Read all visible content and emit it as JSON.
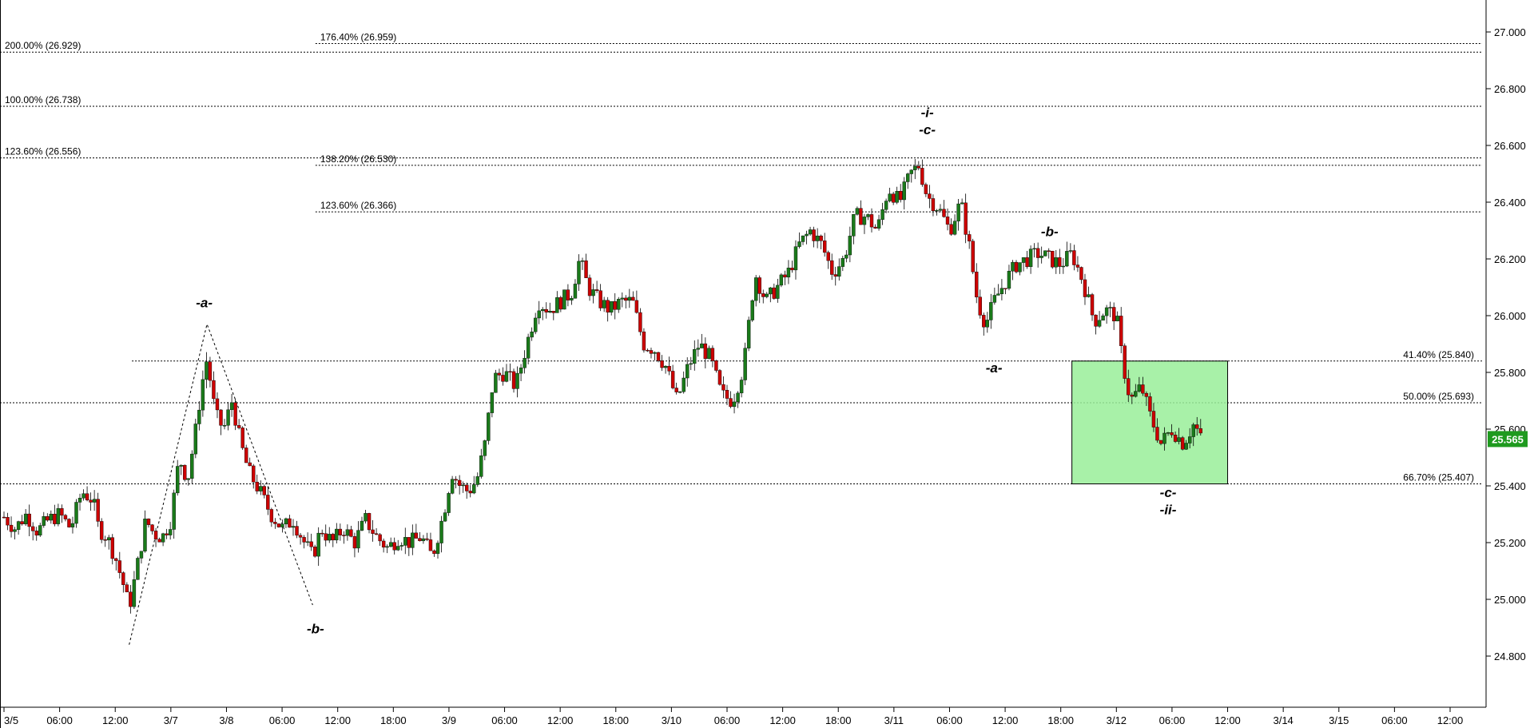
{
  "chart_data": {
    "type": "candlestick",
    "y_range": [
      24.7,
      27.15
    ],
    "x_range": [
      0,
      26.6
    ],
    "y_ticks": [
      "24.800",
      "25.000",
      "25.200",
      "25.400",
      "25.600",
      "25.800",
      "26.000",
      "26.200",
      "26.400",
      "26.600",
      "26.800",
      "27.000"
    ],
    "x_ticks": [
      {
        "label": "3/5",
        "x": 0
      },
      {
        "label": "06:00",
        "x": 1
      },
      {
        "label": "12:00",
        "x": 2
      },
      {
        "label": "3/7",
        "x": 3
      },
      {
        "label": "3/8",
        "x": 4
      },
      {
        "label": "06:00",
        "x": 5
      },
      {
        "label": "12:00",
        "x": 6
      },
      {
        "label": "18:00",
        "x": 7
      },
      {
        "label": "3/9",
        "x": 8
      },
      {
        "label": "06:00",
        "x": 9
      },
      {
        "label": "12:00",
        "x": 10
      },
      {
        "label": "18:00",
        "x": 11
      },
      {
        "label": "3/10",
        "x": 12
      },
      {
        "label": "06:00",
        "x": 13
      },
      {
        "label": "12:00",
        "x": 14
      },
      {
        "label": "18:00",
        "x": 15
      },
      {
        "label": "3/11",
        "x": 16
      },
      {
        "label": "06:00",
        "x": 17
      },
      {
        "label": "12:00",
        "x": 18
      },
      {
        "label": "18:00",
        "x": 19
      },
      {
        "label": "3/12",
        "x": 20
      },
      {
        "label": "06:00",
        "x": 21
      },
      {
        "label": "12:00",
        "x": 22
      },
      {
        "label": "3/14",
        "x": 23
      },
      {
        "label": "3/15",
        "x": 24
      },
      {
        "label": "06:00",
        "x": 25
      },
      {
        "label": "12:00",
        "x": 26
      }
    ],
    "last_price": "25.565",
    "colors": {
      "up": "#1a7a1a",
      "down": "#cc0000",
      "wick": "#000000",
      "badge": "#1f9a1f",
      "zone": "#99ee99",
      "zone_border": "#000000",
      "grid": "#000000"
    },
    "fib_levels": [
      {
        "label": "200.00% (26.929)",
        "value": 26.929,
        "x_start": 0,
        "label_side": "left"
      },
      {
        "label": "100.00% (26.738)",
        "value": 26.738,
        "x_start": 0,
        "label_side": "left"
      },
      {
        "label": "123.60% (26.556)",
        "value": 26.556,
        "x_start": 0,
        "label_side": "left"
      },
      {
        "label": "176.40% (26.959)",
        "value": 26.959,
        "x_start": 5.6,
        "label_side": "left"
      },
      {
        "label": "138.20% (26.530)",
        "value": 26.53,
        "x_start": 5.6,
        "label_side": "left"
      },
      {
        "label": "123.60% (26.366)",
        "value": 26.366,
        "x_start": 5.6,
        "label_side": "left"
      },
      {
        "label": "41.40% (25.840)",
        "value": 25.84,
        "x_start": 2.3,
        "label_side": "right"
      },
      {
        "label": "50.00% (25.693)",
        "value": 25.693,
        "x_start": 0,
        "label_side": "right"
      },
      {
        "label": "66.70% (25.407)",
        "value": 25.407,
        "x_start": 0,
        "label_side": "right"
      }
    ],
    "zone": {
      "x0": 19.2,
      "x1": 22,
      "y0": 25.407,
      "y1": 25.84
    },
    "projection_lines": [
      {
        "x": [
          2.25,
          3.65,
          5.55
        ],
        "y": [
          24.84,
          25.97,
          24.98
        ]
      }
    ],
    "wave_labels": [
      {
        "text": "-a-",
        "x": 3.6,
        "y": 26.03
      },
      {
        "text": "-b-",
        "x": 5.6,
        "y": 24.88
      },
      {
        "text": "-i-",
        "x": 16.6,
        "y": 26.7
      },
      {
        "text": "-c-",
        "x": 16.6,
        "y": 26.64
      },
      {
        "text": "-a-",
        "x": 17.8,
        "y": 25.8
      },
      {
        "text": "-b-",
        "x": 18.8,
        "y": 26.28
      },
      {
        "text": "-c-",
        "x": 20.93,
        "y": 25.36
      },
      {
        "text": "-ii-",
        "x": 20.93,
        "y": 25.3
      }
    ],
    "price_path": [
      [
        0.0,
        25.29
      ],
      [
        0.2,
        25.25
      ],
      [
        0.4,
        25.3
      ],
      [
        0.6,
        25.24
      ],
      [
        0.8,
        25.28
      ],
      [
        1.0,
        25.3
      ],
      [
        1.2,
        25.25
      ],
      [
        1.4,
        25.38
      ],
      [
        1.6,
        25.35
      ],
      [
        1.7,
        25.25
      ],
      [
        1.85,
        25.22
      ],
      [
        2.0,
        25.15
      ],
      [
        2.15,
        25.05
      ],
      [
        2.25,
        24.97
      ],
      [
        2.4,
        25.12
      ],
      [
        2.55,
        25.28
      ],
      [
        2.7,
        25.23
      ],
      [
        2.85,
        25.22
      ],
      [
        3.0,
        25.28
      ],
      [
        3.15,
        25.5
      ],
      [
        3.3,
        25.42
      ],
      [
        3.45,
        25.6
      ],
      [
        3.55,
        25.75
      ],
      [
        3.65,
        25.85
      ],
      [
        3.8,
        25.65
      ],
      [
        3.95,
        25.6
      ],
      [
        4.1,
        25.7
      ],
      [
        4.25,
        25.55
      ],
      [
        4.4,
        25.45
      ],
      [
        4.6,
        25.38
      ],
      [
        4.8,
        25.3
      ],
      [
        5.0,
        25.25
      ],
      [
        5.2,
        25.28
      ],
      [
        5.4,
        25.2
      ],
      [
        5.55,
        25.15
      ],
      [
        5.7,
        25.25
      ],
      [
        5.9,
        25.2
      ],
      [
        6.1,
        25.25
      ],
      [
        6.3,
        25.2
      ],
      [
        6.5,
        25.28
      ],
      [
        6.7,
        25.22
      ],
      [
        6.9,
        25.18
      ],
      [
        7.1,
        25.22
      ],
      [
        7.3,
        25.2
      ],
      [
        7.5,
        25.22
      ],
      [
        7.7,
        25.15
      ],
      [
        7.9,
        25.3
      ],
      [
        8.05,
        25.45
      ],
      [
        8.2,
        25.4
      ],
      [
        8.35,
        25.38
      ],
      [
        8.5,
        25.42
      ],
      [
        8.65,
        25.55
      ],
      [
        8.8,
        25.78
      ],
      [
        9.0,
        25.8
      ],
      [
        9.2,
        25.75
      ],
      [
        9.4,
        25.9
      ],
      [
        9.6,
        26.05
      ],
      [
        9.8,
        26.02
      ],
      [
        10.0,
        26.05
      ],
      [
        10.2,
        26.08
      ],
      [
        10.35,
        26.2
      ],
      [
        10.5,
        26.1
      ],
      [
        10.7,
        26.05
      ],
      [
        10.9,
        26.02
      ],
      [
        11.1,
        26.05
      ],
      [
        11.3,
        26.05
      ],
      [
        11.5,
        25.9
      ],
      [
        11.7,
        25.88
      ],
      [
        11.9,
        25.82
      ],
      [
        12.1,
        25.7
      ],
      [
        12.3,
        25.82
      ],
      [
        12.5,
        25.9
      ],
      [
        12.7,
        25.85
      ],
      [
        12.9,
        25.72
      ],
      [
        13.1,
        25.7
      ],
      [
        13.3,
        25.82
      ],
      [
        13.5,
        26.15
      ],
      [
        13.7,
        26.05
      ],
      [
        13.9,
        26.1
      ],
      [
        14.1,
        26.15
      ],
      [
        14.3,
        26.25
      ],
      [
        14.5,
        26.3
      ],
      [
        14.7,
        26.25
      ],
      [
        14.9,
        26.15
      ],
      [
        15.1,
        26.2
      ],
      [
        15.3,
        26.35
      ],
      [
        15.5,
        26.35
      ],
      [
        15.7,
        26.3
      ],
      [
        15.9,
        26.45
      ],
      [
        16.1,
        26.4
      ],
      [
        16.3,
        26.5
      ],
      [
        16.45,
        26.53
      ],
      [
        16.6,
        26.42
      ],
      [
        16.8,
        26.38
      ],
      [
        17.0,
        26.3
      ],
      [
        17.2,
        26.4
      ],
      [
        17.35,
        26.25
      ],
      [
        17.5,
        26.05
      ],
      [
        17.65,
        25.97
      ],
      [
        17.8,
        26.05
      ],
      [
        18.0,
        26.12
      ],
      [
        18.2,
        26.18
      ],
      [
        18.4,
        26.2
      ],
      [
        18.6,
        26.22
      ],
      [
        18.8,
        26.2
      ],
      [
        19.0,
        26.18
      ],
      [
        19.2,
        26.22
      ],
      [
        19.4,
        26.12
      ],
      [
        19.6,
        25.98
      ],
      [
        19.8,
        26.02
      ],
      [
        20.0,
        26.0
      ],
      [
        20.1,
        25.85
      ],
      [
        20.25,
        25.7
      ],
      [
        20.45,
        25.75
      ],
      [
        20.6,
        25.65
      ],
      [
        20.8,
        25.55
      ],
      [
        21.0,
        25.6
      ],
      [
        21.2,
        25.55
      ],
      [
        21.4,
        25.62
      ],
      [
        21.55,
        25.55
      ]
    ]
  }
}
